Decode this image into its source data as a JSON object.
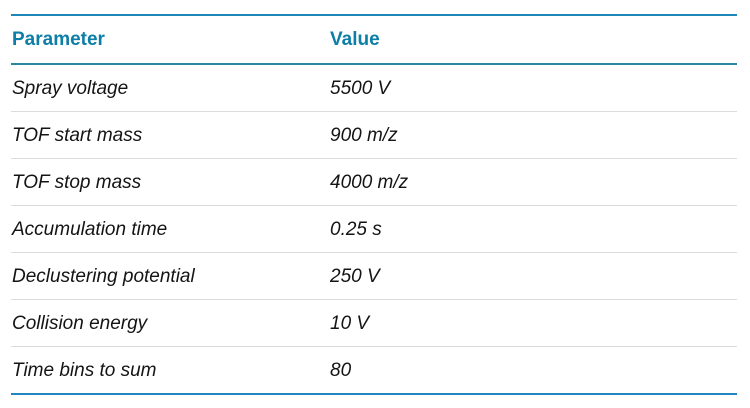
{
  "table": {
    "columns": [
      {
        "label": "Parameter"
      },
      {
        "label": "Value"
      }
    ],
    "rows": [
      {
        "parameter": "Spray voltage",
        "value": "5500 V"
      },
      {
        "parameter": "TOF start mass",
        "value": "900 m/z"
      },
      {
        "parameter": "TOF stop mass",
        "value": "4000 m/z"
      },
      {
        "parameter": "Accumulation time",
        "value": "0.25 s"
      },
      {
        "parameter": "Declustering potential",
        "value": "250 V"
      },
      {
        "parameter": "Collision energy",
        "value": "10 V"
      },
      {
        "parameter": "Time bins to sum",
        "value": "80"
      }
    ],
    "colors": {
      "header_text": "#0d7ea6",
      "rule_top": "#1f86b8",
      "rule_header": "#28899e",
      "rule_bottom": "#1f86c0",
      "row_divider": "#dcdcdc"
    }
  }
}
